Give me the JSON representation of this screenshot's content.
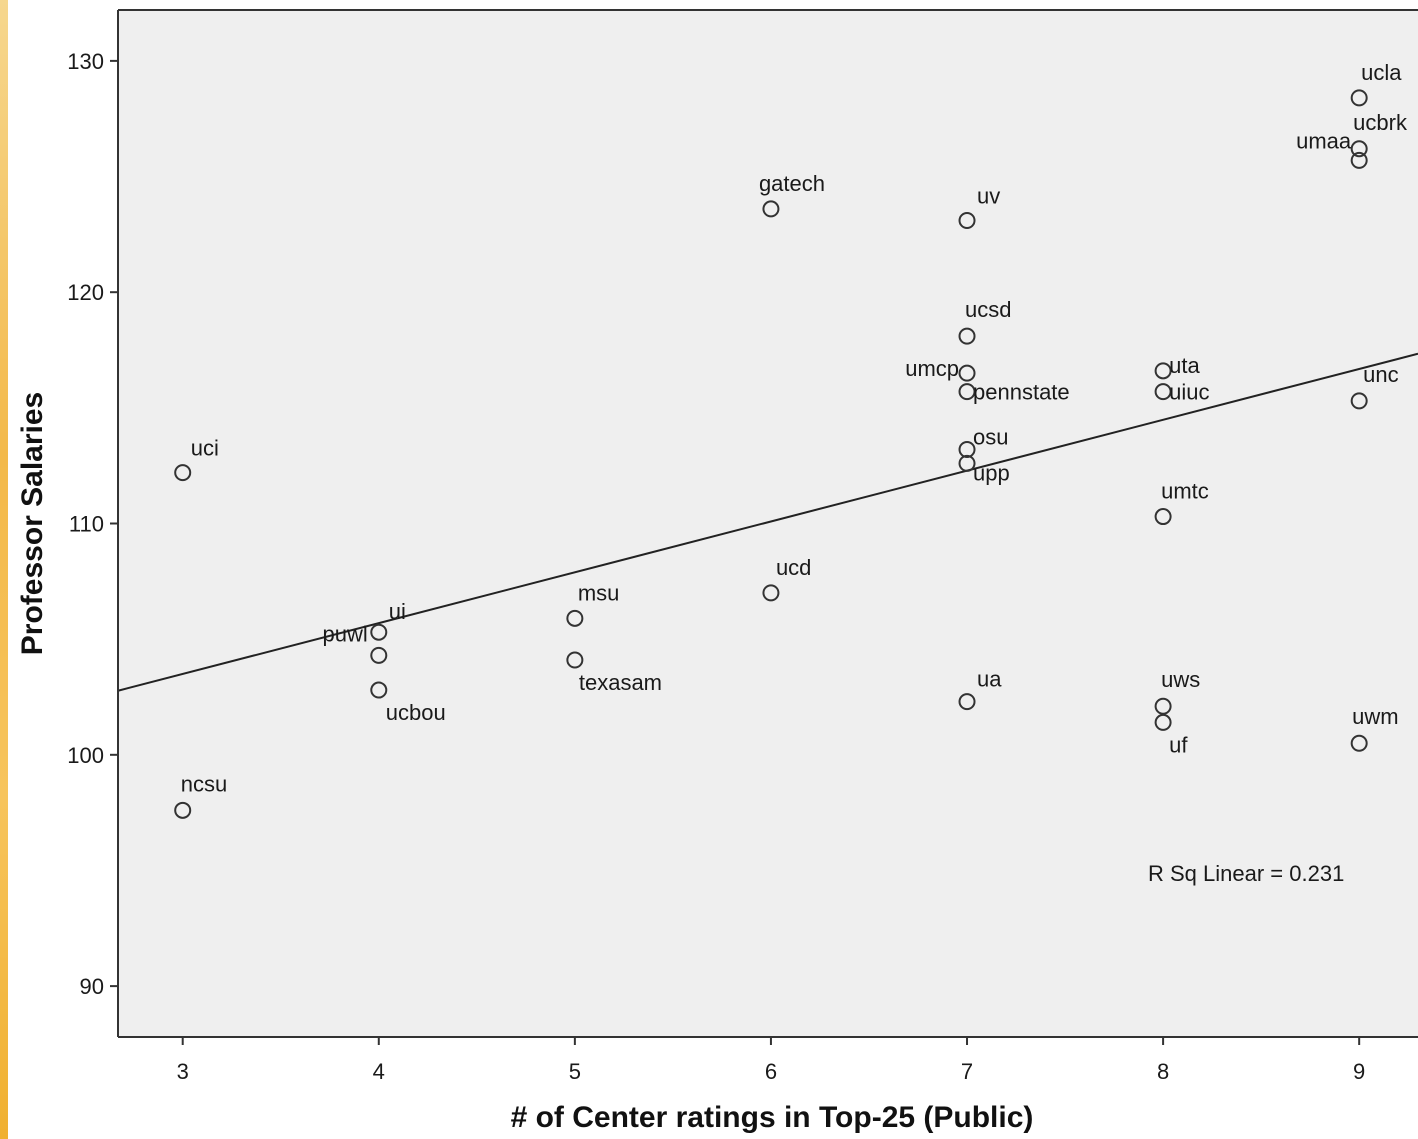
{
  "chart_data": {
    "type": "scatter",
    "xlabel": "# of Center ratings in Top-25 (Public)",
    "ylabel": "Professor Salaries",
    "xlim": [
      2.67,
      9.3
    ],
    "ylim": [
      87.8,
      132.2
    ],
    "x_ticks": [
      3,
      4,
      5,
      6,
      7,
      8,
      9
    ],
    "y_ticks": [
      90,
      100,
      110,
      120,
      130
    ],
    "grid": false,
    "points": [
      {
        "label": "ucla",
        "x": 9,
        "y": 128.4
      },
      {
        "label": "ucbrk",
        "x": 9,
        "y": 126.2
      },
      {
        "label": "umaa",
        "x": 9,
        "y": 125.7
      },
      {
        "label": "gatech",
        "x": 6,
        "y": 123.6
      },
      {
        "label": "uv",
        "x": 7,
        "y": 123.1
      },
      {
        "label": "ucsd",
        "x": 7,
        "y": 118.1
      },
      {
        "label": "umcp",
        "x": 7,
        "y": 116.5
      },
      {
        "label": "pennstate",
        "x": 7,
        "y": 115.7
      },
      {
        "label": "uta",
        "x": 8,
        "y": 116.6
      },
      {
        "label": "uiuc",
        "x": 8,
        "y": 115.7
      },
      {
        "label": "unc",
        "x": 9,
        "y": 115.3
      },
      {
        "label": "osu",
        "x": 7,
        "y": 113.2
      },
      {
        "label": "upp",
        "x": 7,
        "y": 112.6
      },
      {
        "label": "uci",
        "x": 3,
        "y": 112.2
      },
      {
        "label": "umtc",
        "x": 8,
        "y": 110.3
      },
      {
        "label": "ucd",
        "x": 6,
        "y": 107.0
      },
      {
        "label": "msu",
        "x": 5,
        "y": 105.9
      },
      {
        "label": "ui",
        "x": 4,
        "y": 105.3
      },
      {
        "label": "puwl",
        "x": 4,
        "y": 104.3
      },
      {
        "label": "texasam",
        "x": 5,
        "y": 104.1
      },
      {
        "label": "ucbou",
        "x": 4,
        "y": 102.8
      },
      {
        "label": "ua",
        "x": 7,
        "y": 102.3
      },
      {
        "label": "uws",
        "x": 8,
        "y": 102.1
      },
      {
        "label": "uf",
        "x": 8,
        "y": 101.4
      },
      {
        "label": "uwm",
        "x": 9,
        "y": 100.5
      },
      {
        "label": "ncsu",
        "x": 3,
        "y": 97.6
      }
    ],
    "fit_line": {
      "type": "linear",
      "x": [
        2.67,
        9.3
      ],
      "y": [
        102.77,
        117.34
      ]
    },
    "annotation": "R Sq Linear = 0.231",
    "colors": {
      "plot_bg": "#efefef",
      "marker": "#333333",
      "line": "#222222",
      "frame": "#333333"
    }
  }
}
